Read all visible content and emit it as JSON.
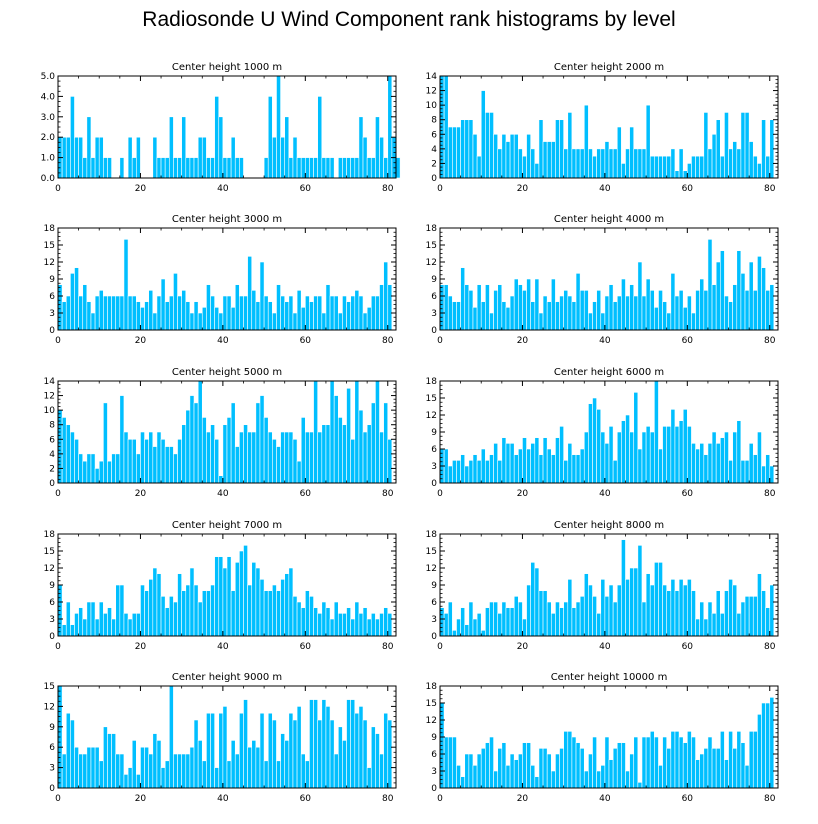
{
  "title": "Radiosonde U Wind Component rank histograms by level",
  "colors": {
    "bar": "#00BFFF",
    "bar_edge": "#ffffff",
    "axis": "#000000"
  },
  "chart_data": [
    {
      "type": "bar",
      "title": "Center height 1000 m",
      "xlabel": "",
      "ylabel": "",
      "xlim": [
        0,
        82
      ],
      "ylim": [
        0,
        5
      ],
      "xticks": [
        0,
        20,
        40,
        60,
        80
      ],
      "yticks": [
        0,
        1,
        2,
        3,
        4,
        5
      ],
      "ytick_labels": [
        "0.0",
        "1.0",
        "2.0",
        "3.0",
        "4.0",
        "5.0"
      ],
      "values": [
        2,
        2,
        2,
        4,
        2,
        2,
        1,
        3,
        1,
        2,
        2,
        1,
        1,
        0,
        0,
        1,
        0,
        2,
        1,
        2,
        0,
        0,
        0,
        2,
        1,
        1,
        1,
        3,
        1,
        1,
        3,
        1,
        1,
        1,
        2,
        2,
        1,
        1,
        4,
        3,
        1,
        1,
        2,
        1,
        1,
        0,
        0,
        0,
        0,
        0,
        1,
        4,
        2,
        5,
        2,
        3,
        1,
        2,
        1,
        1,
        1,
        1,
        1,
        4,
        1,
        1,
        1,
        0,
        1,
        1,
        1,
        1,
        1,
        3,
        2,
        1,
        1,
        3,
        2,
        1,
        5,
        2,
        1
      ]
    },
    {
      "type": "bar",
      "title": "Center height 2000 m",
      "xlabel": "",
      "ylabel": "",
      "xlim": [
        0,
        82
      ],
      "ylim": [
        0,
        14
      ],
      "xticks": [
        0,
        20,
        40,
        60,
        80
      ],
      "yticks": [
        0,
        2,
        4,
        6,
        8,
        10,
        12,
        14
      ],
      "ytick_labels": [
        "0",
        "2",
        "4",
        "6",
        "8",
        "10",
        "12",
        "14"
      ],
      "values": [
        14,
        14,
        7,
        7,
        7,
        8,
        8,
        8,
        6,
        3,
        12,
        9,
        9,
        6,
        4,
        6,
        5,
        6,
        6,
        4,
        3,
        6,
        4,
        2,
        8,
        5,
        5,
        5,
        8,
        8,
        4,
        9,
        4,
        4,
        4,
        10,
        4,
        3,
        4,
        4,
        5,
        4,
        4,
        7,
        2,
        4,
        7,
        4,
        4,
        4,
        10,
        3,
        3,
        3,
        3,
        3,
        4,
        1,
        4,
        1,
        2,
        3,
        3,
        3,
        9,
        4,
        6,
        8,
        3,
        9,
        4,
        5,
        4,
        9,
        9,
        5,
        3,
        2,
        8,
        3,
        8
      ]
    },
    {
      "type": "bar",
      "title": "Center height 3000 m",
      "xlabel": "",
      "ylabel": "",
      "xlim": [
        0,
        82
      ],
      "ylim": [
        0,
        18
      ],
      "xticks": [
        0,
        20,
        40,
        60,
        80
      ],
      "yticks": [
        0,
        3,
        6,
        9,
        12,
        15,
        18
      ],
      "ytick_labels": [
        "0",
        "3",
        "6",
        "9",
        "12",
        "15",
        "18"
      ],
      "values": [
        8,
        5,
        6,
        10,
        11,
        6,
        8,
        5,
        3,
        6,
        7,
        6,
        6,
        6,
        6,
        6,
        16,
        6,
        6,
        5,
        4,
        5,
        7,
        3,
        6,
        9,
        5,
        6,
        10,
        6,
        7,
        5,
        3,
        5,
        3,
        4,
        8,
        6,
        4,
        3,
        6,
        6,
        4,
        8,
        6,
        6,
        13,
        7,
        5,
        12,
        6,
        5,
        3,
        8,
        6,
        5,
        6,
        3,
        7,
        4,
        6,
        5,
        6,
        6,
        3,
        8,
        6,
        6,
        3,
        6,
        5,
        6,
        7,
        6,
        3,
        4,
        6,
        6,
        8,
        12,
        8
      ]
    },
    {
      "type": "bar",
      "title": "Center height 4000 m",
      "xlabel": "",
      "ylabel": "",
      "xlim": [
        0,
        82
      ],
      "ylim": [
        0,
        18
      ],
      "xticks": [
        0,
        20,
        40,
        60,
        80
      ],
      "yticks": [
        0,
        3,
        6,
        9,
        12,
        15,
        18
      ],
      "ytick_labels": [
        "0",
        "3",
        "6",
        "9",
        "12",
        "15",
        "18"
      ],
      "values": [
        8,
        8,
        6,
        5,
        5,
        11,
        8,
        7,
        4,
        8,
        5,
        8,
        3,
        7,
        8,
        5,
        4,
        6,
        9,
        8,
        7,
        9,
        5,
        9,
        3,
        6,
        5,
        9,
        5,
        6,
        7,
        6,
        5,
        10,
        7,
        7,
        3,
        5,
        7,
        3,
        6,
        8,
        5,
        6,
        9,
        6,
        8,
        6,
        12,
        6,
        9,
        7,
        4,
        7,
        5,
        3,
        10,
        6,
        7,
        4,
        6,
        3,
        7,
        9,
        7,
        16,
        8,
        12,
        14,
        6,
        5,
        8,
        14,
        10,
        7,
        12,
        7,
        13,
        11,
        7,
        8
      ]
    },
    {
      "type": "bar",
      "title": "Center height 5000 m",
      "xlabel": "",
      "ylabel": "",
      "xlim": [
        0,
        82
      ],
      "ylim": [
        0,
        14
      ],
      "xticks": [
        0,
        20,
        40,
        60,
        80
      ],
      "yticks": [
        0,
        2,
        4,
        6,
        8,
        10,
        12,
        14
      ],
      "ytick_labels": [
        "0",
        "2",
        "4",
        "6",
        "8",
        "10",
        "12",
        "14"
      ],
      "values": [
        10,
        9,
        8,
        7,
        6,
        4,
        3,
        4,
        4,
        2,
        3,
        11,
        3,
        4,
        4,
        12,
        7,
        6,
        6,
        4,
        7,
        6,
        7,
        5,
        7,
        6,
        5,
        5,
        4,
        6,
        8,
        10,
        12,
        11,
        14,
        9,
        7,
        8,
        6,
        1,
        8,
        9,
        11,
        5,
        7,
        8,
        7,
        7,
        11,
        12,
        9,
        7,
        6,
        5,
        7,
        7,
        7,
        6,
        3,
        9,
        7,
        7,
        14,
        7,
        8,
        8,
        14,
        12,
        9,
        8,
        13,
        6,
        14,
        10,
        7,
        8,
        11,
        14,
        7,
        11,
        6
      ]
    },
    {
      "type": "bar",
      "title": "Center height 6000 m",
      "xlabel": "",
      "ylabel": "",
      "xlim": [
        0,
        82
      ],
      "ylim": [
        0,
        18
      ],
      "xticks": [
        0,
        20,
        40,
        60,
        80
      ],
      "yticks": [
        0,
        3,
        6,
        9,
        12,
        15,
        18
      ],
      "ytick_labels": [
        "0",
        "3",
        "6",
        "9",
        "12",
        "15",
        "18"
      ],
      "values": [
        6,
        6,
        3,
        4,
        4,
        5,
        3,
        4,
        5,
        4,
        6,
        4,
        5,
        7,
        4,
        8,
        7,
        7,
        5,
        6,
        8,
        6,
        7,
        8,
        5,
        8,
        6,
        5,
        8,
        10,
        4,
        7,
        5,
        5,
        6,
        9,
        14,
        15,
        13,
        9,
        7,
        10,
        4,
        9,
        11,
        12,
        9,
        16,
        6,
        9,
        10,
        9,
        18,
        6,
        10,
        10,
        13,
        10,
        11,
        13,
        10,
        7,
        6,
        7,
        5,
        7,
        9,
        7,
        8,
        9,
        4,
        9,
        11,
        4,
        4,
        7,
        5,
        9,
        3,
        5,
        3
      ]
    },
    {
      "type": "bar",
      "title": "Center height 7000 m",
      "xlabel": "",
      "ylabel": "",
      "xlim": [
        0,
        82
      ],
      "ylim": [
        0,
        18
      ],
      "xticks": [
        0,
        20,
        40,
        60,
        80
      ],
      "yticks": [
        0,
        3,
        6,
        9,
        12,
        15,
        18
      ],
      "ytick_labels": [
        "0",
        "3",
        "6",
        "9",
        "12",
        "15",
        "18"
      ],
      "values": [
        9,
        2,
        6,
        2,
        4,
        5,
        3,
        6,
        6,
        3,
        6,
        4,
        5,
        3,
        9,
        9,
        4,
        3,
        4,
        4,
        9,
        8,
        10,
        12,
        11,
        7,
        5,
        7,
        6,
        11,
        8,
        9,
        12,
        9,
        6,
        8,
        8,
        9,
        14,
        14,
        12,
        14,
        8,
        13,
        15,
        16,
        9,
        13,
        12,
        10,
        8,
        8,
        9,
        8,
        10,
        11,
        12,
        7,
        6,
        5,
        8,
        7,
        5,
        4,
        6,
        5,
        3,
        6,
        4,
        4,
        5,
        3,
        6,
        4,
        5,
        3,
        4,
        3,
        4,
        5,
        4
      ]
    },
    {
      "type": "bar",
      "title": "Center height 8000 m",
      "xlabel": "",
      "ylabel": "",
      "xlim": [
        0,
        82
      ],
      "ylim": [
        0,
        18
      ],
      "xticks": [
        0,
        20,
        40,
        60,
        80
      ],
      "yticks": [
        0,
        3,
        6,
        9,
        12,
        15,
        18
      ],
      "ytick_labels": [
        "0",
        "3",
        "6",
        "9",
        "12",
        "15",
        "18"
      ],
      "values": [
        5,
        4,
        6,
        1,
        3,
        5,
        2,
        6,
        3,
        4,
        1,
        5,
        6,
        6,
        4,
        6,
        5,
        5,
        7,
        6,
        3,
        9,
        13,
        12,
        8,
        8,
        6,
        4,
        6,
        5,
        6,
        10,
        5,
        6,
        7,
        11,
        9,
        7,
        4,
        10,
        7,
        9,
        6,
        9,
        17,
        10,
        12,
        12,
        16,
        6,
        11,
        9,
        13,
        13,
        9,
        8,
        10,
        8,
        10,
        9,
        10,
        8,
        3,
        6,
        3,
        6,
        4,
        8,
        4,
        8,
        10,
        9,
        4,
        6,
        7,
        7,
        7,
        11,
        8,
        5,
        9
      ]
    },
    {
      "type": "bar",
      "title": "Center height 9000 m",
      "xlabel": "",
      "ylabel": "",
      "xlim": [
        0,
        82
      ],
      "ylim": [
        0,
        15
      ],
      "xticks": [
        0,
        20,
        40,
        60,
        80
      ],
      "yticks": [
        0,
        3,
        6,
        9,
        12,
        15
      ],
      "ytick_labels": [
        "0",
        "3",
        "6",
        "9",
        "12",
        "15"
      ],
      "values": [
        15,
        5,
        11,
        10,
        6,
        5,
        5,
        6,
        6,
        6,
        4,
        9,
        8,
        8,
        5,
        5,
        2,
        3,
        7,
        2,
        6,
        6,
        5,
        8,
        7,
        3,
        4,
        15,
        5,
        5,
        5,
        5,
        6,
        10,
        7,
        4,
        11,
        11,
        3,
        11,
        12,
        4,
        7,
        5,
        11,
        13,
        6,
        7,
        6,
        11,
        4,
        11,
        10,
        4,
        8,
        7,
        11,
        10,
        12,
        5,
        4,
        13,
        13,
        10,
        13,
        12,
        10,
        5,
        9,
        7,
        13,
        13,
        11,
        12,
        10,
        3,
        9,
        8,
        5,
        11,
        10
      ]
    },
    {
      "type": "bar",
      "title": "Center height 10000 m",
      "xlabel": "",
      "ylabel": "",
      "xlim": [
        0,
        82
      ],
      "ylim": [
        0,
        18
      ],
      "xticks": [
        0,
        20,
        40,
        60,
        80
      ],
      "yticks": [
        0,
        3,
        6,
        9,
        12,
        15,
        18
      ],
      "ytick_labels": [
        "0",
        "3",
        "6",
        "9",
        "12",
        "15",
        "18"
      ],
      "values": [
        15,
        9,
        9,
        9,
        4,
        2,
        6,
        6,
        4,
        6,
        7,
        8,
        9,
        3,
        7,
        8,
        4,
        6,
        5,
        6,
        8,
        8,
        4,
        2,
        7,
        7,
        6,
        3,
        6,
        7,
        10,
        10,
        9,
        8,
        7,
        3,
        6,
        9,
        3,
        4,
        9,
        5,
        7,
        8,
        8,
        3,
        6,
        9,
        1,
        9,
        9,
        10,
        9,
        4,
        9,
        7,
        10,
        10,
        9,
        8,
        10,
        9,
        5,
        6,
        7,
        9,
        7,
        7,
        10,
        5,
        10,
        7,
        10,
        8,
        4,
        10,
        10,
        13,
        15,
        15,
        16
      ]
    }
  ]
}
